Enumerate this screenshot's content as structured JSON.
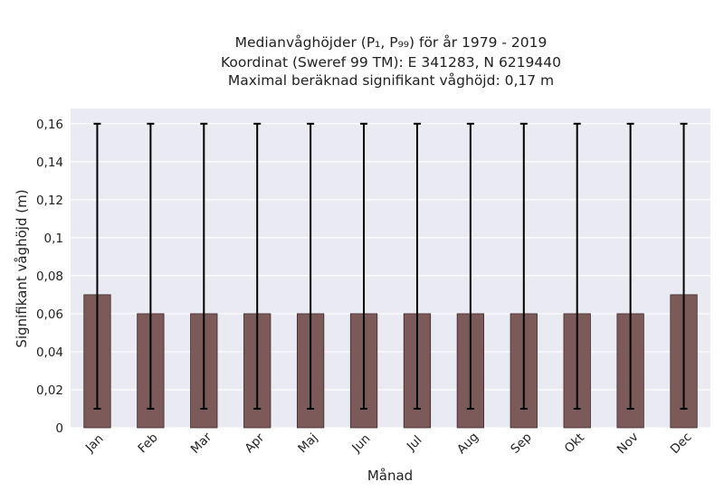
{
  "chart_data": {
    "type": "bar",
    "title_lines": [
      "Medianvåghöjder (P₁, P₉₉) för år 1979 - 2019",
      "Koordinat (Sweref 99 TM): E 341283, N 6219440",
      "Maximal beräknad signifikant våghöjd: 0,17 m"
    ],
    "xlabel": "Månad",
    "ylabel": "Signifikant våghöjd (m)",
    "categories": [
      "Jan",
      "Feb",
      "Mar",
      "Apr",
      "Maj",
      "Jun",
      "Jul",
      "Aug",
      "Sep",
      "Okt",
      "Nov",
      "Dec"
    ],
    "values": [
      0.07,
      0.06,
      0.06,
      0.06,
      0.06,
      0.06,
      0.06,
      0.06,
      0.06,
      0.06,
      0.06,
      0.07
    ],
    "error_low": [
      0.01,
      0.01,
      0.01,
      0.01,
      0.01,
      0.01,
      0.01,
      0.01,
      0.01,
      0.01,
      0.01,
      0.01
    ],
    "error_high": [
      0.16,
      0.16,
      0.16,
      0.16,
      0.16,
      0.16,
      0.16,
      0.16,
      0.16,
      0.16,
      0.16,
      0.16
    ],
    "ylim": [
      0,
      0.168
    ],
    "yticks": [
      0,
      0.02,
      0.04,
      0.06,
      0.08,
      0.1,
      0.12,
      0.14,
      0.16
    ],
    "ytick_labels": [
      "0",
      "0,02",
      "0,04",
      "0,06",
      "0,08",
      "0,1",
      "0,12",
      "0,14",
      "0,16"
    ],
    "grid": true,
    "legend": "none",
    "colors": {
      "bar": "#7d5a5a",
      "bar_edge": "#3a2a2a",
      "error_bar": "#000000",
      "plot_background": "#eaeaf2",
      "grid": "#ffffff"
    }
  }
}
